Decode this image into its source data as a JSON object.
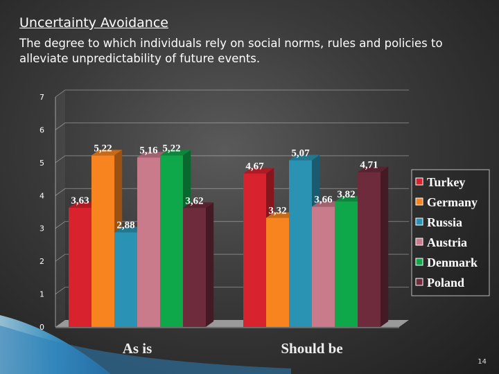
{
  "slide": {
    "title": "Uncertainty Avoidance",
    "subtitle": "The degree to which individuals rely on social norms, rules and policies to alleviate unpredictability of future events.",
    "page_number": "14"
  },
  "chart_data": {
    "type": "bar",
    "categories": [
      "As is",
      "Should be"
    ],
    "series": [
      {
        "name": "Turkey",
        "values": [
          3.63,
          4.67
        ],
        "labels": [
          "3,63",
          "4,67"
        ],
        "color": "#d8222e"
      },
      {
        "name": "Germany",
        "values": [
          5.22,
          3.32
        ],
        "labels": [
          "5,22",
          "3,32"
        ],
        "color": "#f7841e"
      },
      {
        "name": "Russia",
        "values": [
          2.88,
          5.07
        ],
        "labels": [
          "2,88",
          "5,07"
        ],
        "color": "#2a93b3"
      },
      {
        "name": "Austria",
        "values": [
          5.16,
          3.66
        ],
        "labels": [
          "5,16",
          "3,66"
        ],
        "color": "#c97b8c"
      },
      {
        "name": "Denmark",
        "values": [
          5.22,
          3.82
        ],
        "labels": [
          "5,22",
          "3,82"
        ],
        "color": "#0ea84a"
      },
      {
        "name": "Poland",
        "values": [
          3.62,
          4.71
        ],
        "labels": [
          "3,62",
          "4,71"
        ],
        "color": "#6e2b3c"
      }
    ],
    "y_ticks": [
      "0",
      "1",
      "2",
      "3",
      "4",
      "5",
      "6",
      "7"
    ],
    "ylim": [
      0,
      7
    ],
    "grid": true,
    "legend_position": "right",
    "bar_style": "3d"
  }
}
